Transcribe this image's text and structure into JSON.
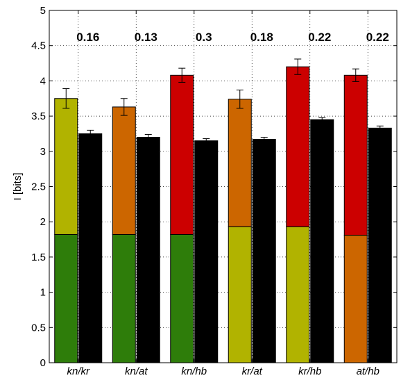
{
  "chart_data": {
    "type": "bar",
    "subtype": "stacked bars paired with total bars, with error bars",
    "categories": [
      "kn/kr",
      "kn/at",
      "kn/hb",
      "kr/at",
      "kr/hb",
      "at/hb"
    ],
    "ylabel": "I [bits]",
    "xlabel": "",
    "ylim": [
      0,
      5
    ],
    "yticks": [
      0,
      0.5,
      1,
      1.5,
      2,
      2.5,
      3,
      3.5,
      4,
      4.5,
      5
    ],
    "ytick_labels": [
      "0",
      "0.5",
      "1",
      "1.5",
      "2",
      "2.5",
      "3",
      "3.5",
      "4",
      "4.5",
      "5"
    ],
    "grid": "dotted, both axes",
    "annotations": [
      "0.16",
      "0.13",
      "0.3",
      "0.18",
      "0.22",
      "0.22"
    ],
    "stacked_bars": [
      {
        "bottom": 1.82,
        "total": 3.75,
        "err": 0.14,
        "bottom_color": "#2e7d0a",
        "top_color": "#b1b300"
      },
      {
        "bottom": 1.82,
        "total": 3.63,
        "err": 0.12,
        "bottom_color": "#2e7d0a",
        "top_color": "#cc6600"
      },
      {
        "bottom": 1.82,
        "total": 4.08,
        "err": 0.1,
        "bottom_color": "#2e7d0a",
        "top_color": "#cc0000"
      },
      {
        "bottom": 1.93,
        "total": 3.74,
        "err": 0.13,
        "bottom_color": "#b1b300",
        "top_color": "#cc6600"
      },
      {
        "bottom": 1.93,
        "total": 4.2,
        "err": 0.11,
        "bottom_color": "#b1b300",
        "top_color": "#cc0000"
      },
      {
        "bottom": 1.81,
        "total": 4.08,
        "err": 0.09,
        "bottom_color": "#cc6600",
        "top_color": "#cc0000"
      }
    ],
    "black_bars": [
      {
        "value": 3.25,
        "err": 0.05
      },
      {
        "value": 3.2,
        "err": 0.04
      },
      {
        "value": 3.15,
        "err": 0.03
      },
      {
        "value": 3.17,
        "err": 0.03
      },
      {
        "value": 3.45,
        "err": 0.03
      },
      {
        "value": 3.33,
        "err": 0.03
      }
    ],
    "black_bar_color": "#000000"
  }
}
